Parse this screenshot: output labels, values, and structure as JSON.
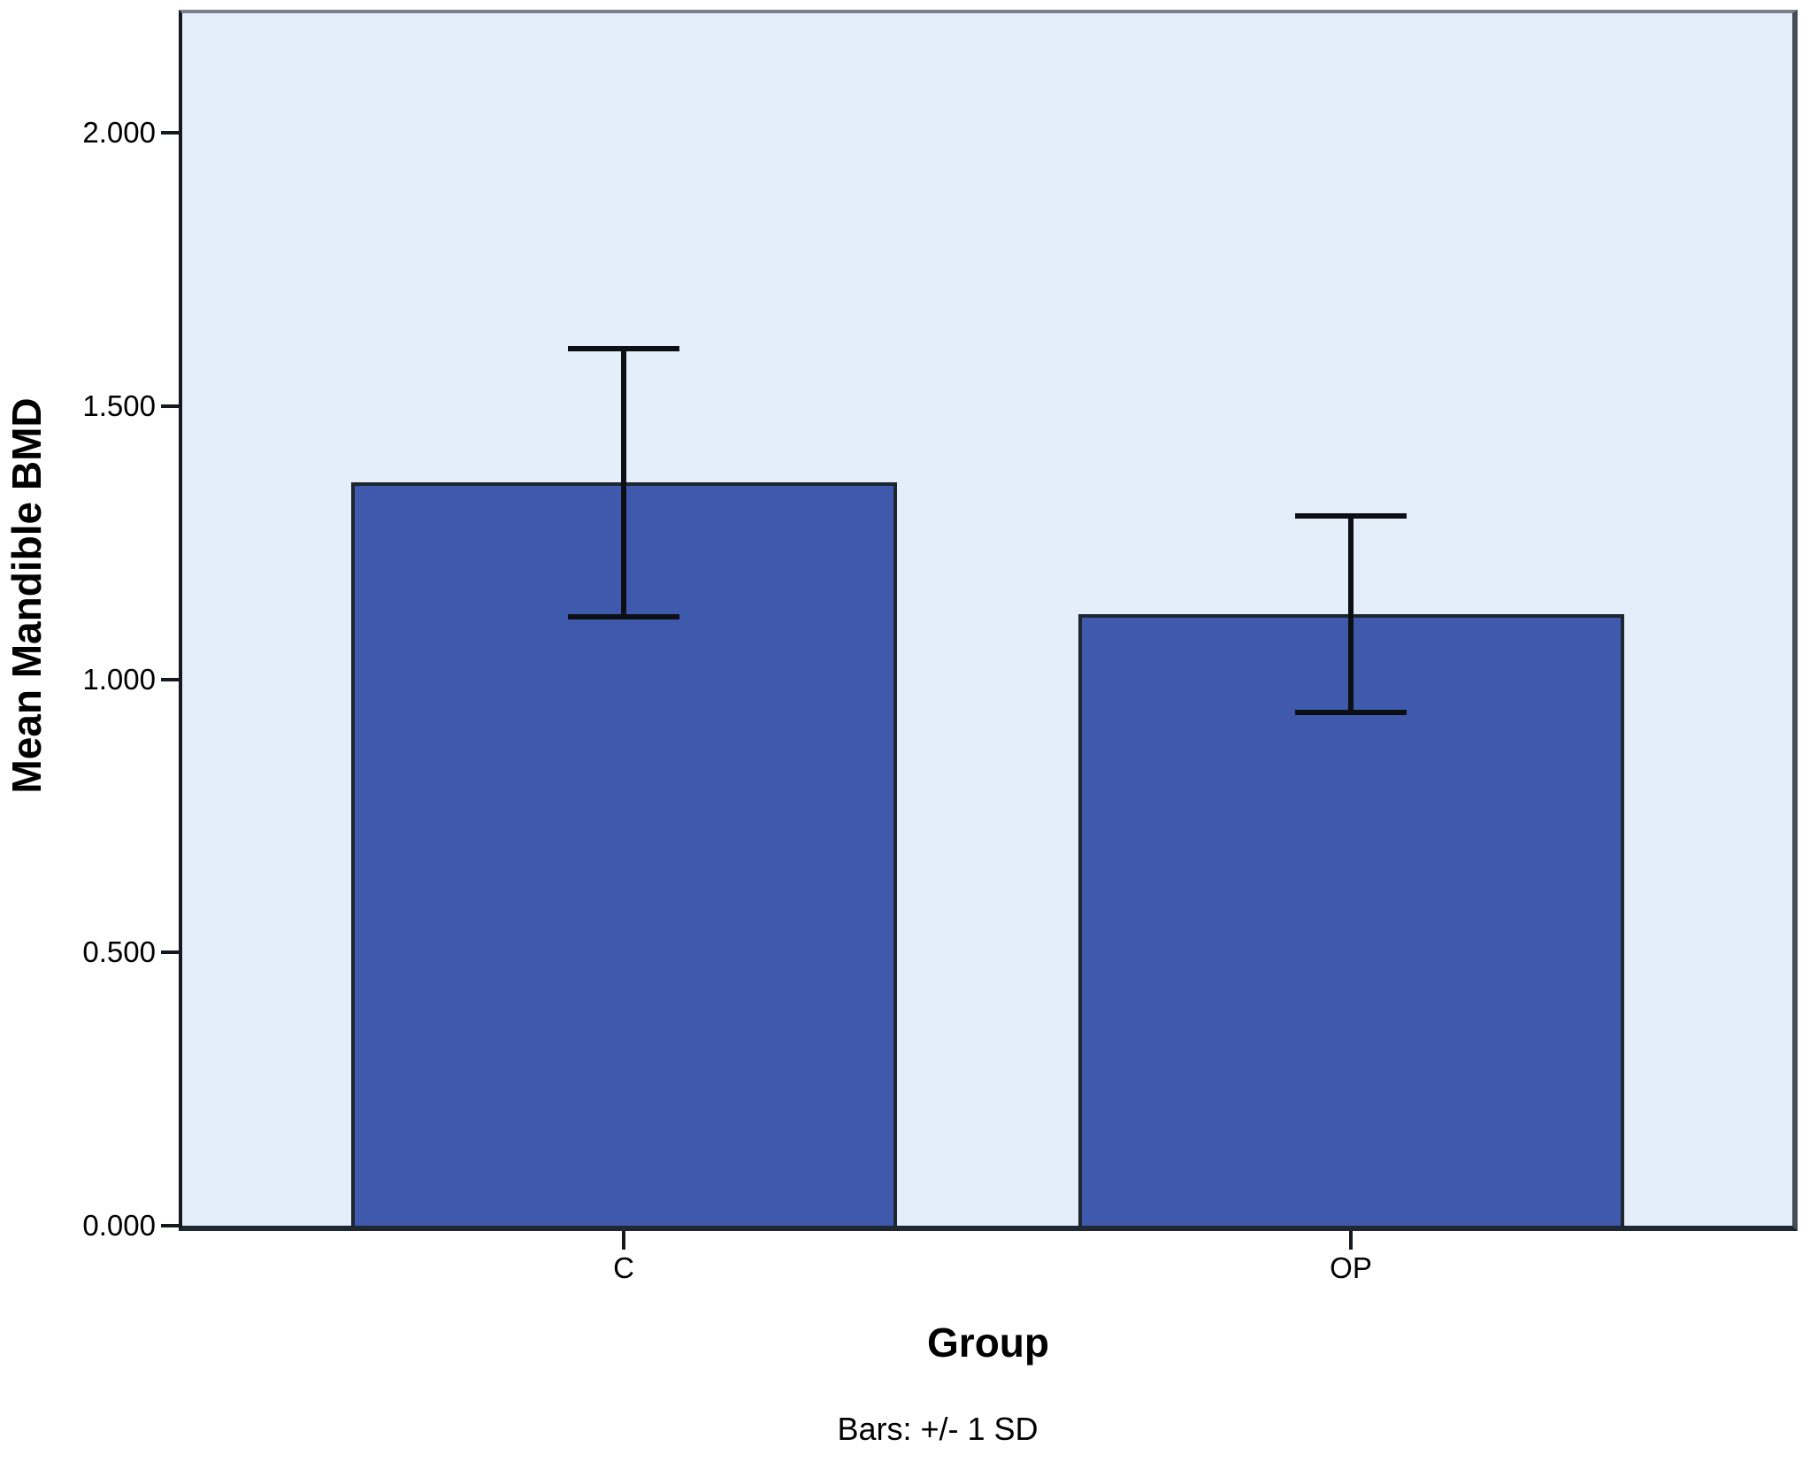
{
  "chart_data": {
    "type": "bar",
    "title": "",
    "xlabel": "Group",
    "ylabel": "Mean Mandible BMD",
    "footnote": "Bars: +/- 1 SD",
    "categories": [
      "C",
      "OP"
    ],
    "values": [
      1.36,
      1.12
    ],
    "sd": [
      0.245,
      0.18
    ],
    "error_high": [
      1.6,
      1.31
    ],
    "error_low": [
      1.11,
      0.95
    ],
    "error_bars": "mean +/- 1 SD",
    "ylim": [
      0,
      2.22
    ],
    "yticks": [
      {
        "value": 0.0,
        "label": "0.000"
      },
      {
        "value": 0.5,
        "label": "0.500"
      },
      {
        "value": 1.0,
        "label": "1.000"
      },
      {
        "value": 1.5,
        "label": "1.500"
      },
      {
        "value": 2.0,
        "label": "2.000"
      }
    ],
    "grid": false,
    "legend": null
  },
  "style": {
    "figure_background": "#ffffff",
    "plot_background": "#e3eefa",
    "bar_fill": "#3f5aad",
    "bar_border": "#1e2630",
    "error_bar_color": "#0c0f13",
    "axis_text_color": "#000000",
    "frame_top": "#79828c",
    "frame_right": "#454e57",
    "frame_bottom": "#1f2733",
    "frame_left": "#15181d",
    "tick_mark_color": "#15181d"
  }
}
